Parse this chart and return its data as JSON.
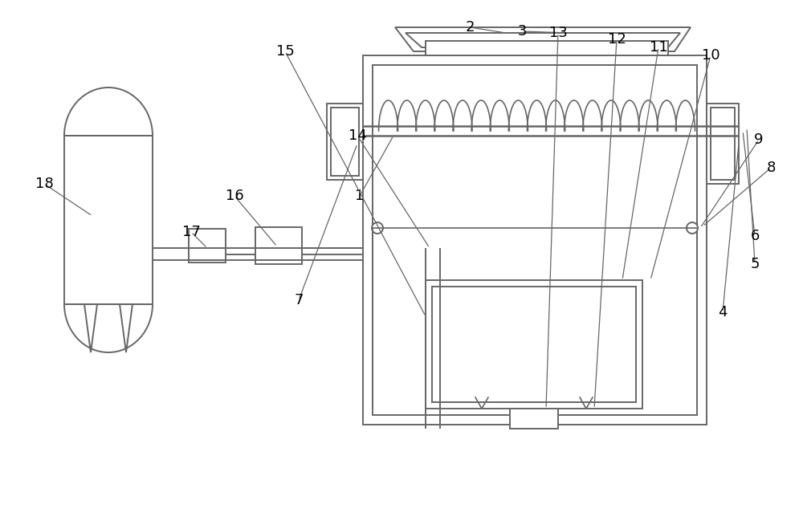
{
  "bg_color": "#ffffff",
  "line_color": "#666666",
  "lw": 1.4,
  "fig_w": 10.0,
  "fig_h": 6.59,
  "dpi": 100
}
